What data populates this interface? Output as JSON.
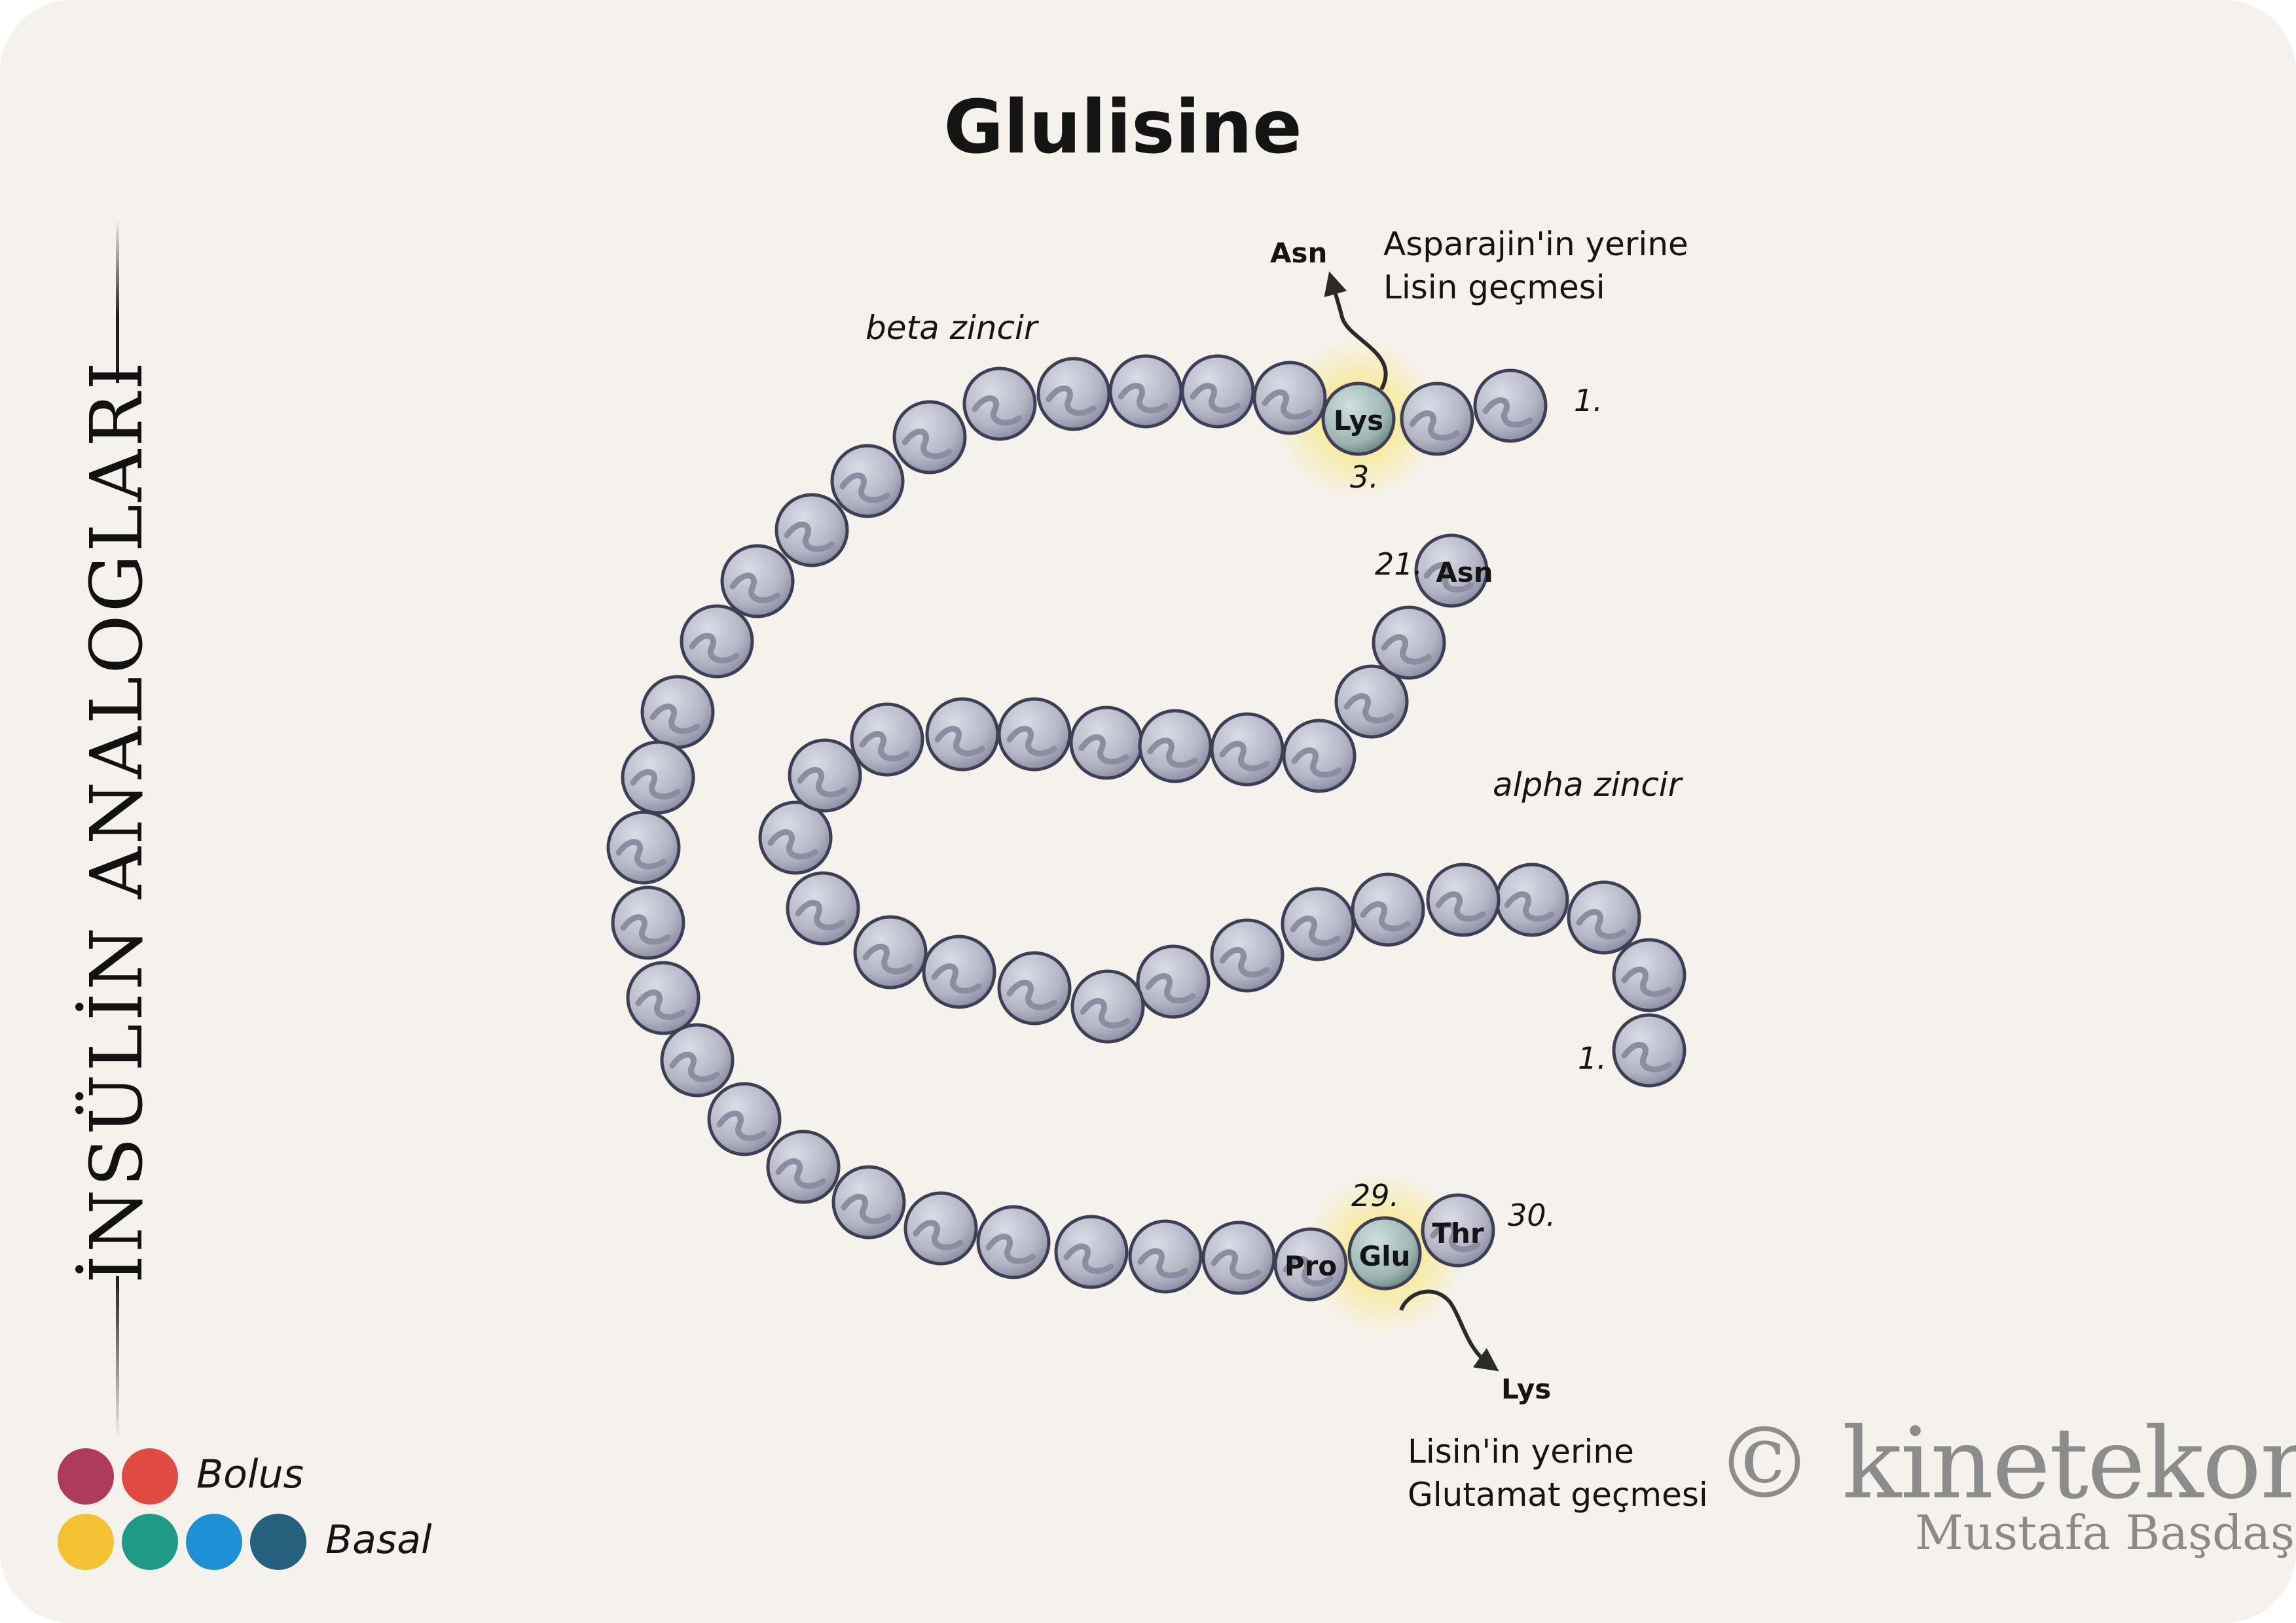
{
  "title": "Glulisine",
  "sidebar": {
    "title": "İNSÜLİN ANALOGLARI"
  },
  "chains": {
    "beta": {
      "label": "beta zincir",
      "start_number": "1.",
      "end_number": "30."
    },
    "alpha": {
      "label": "alpha zincir",
      "start_number": "1.",
      "end_number": "21.",
      "end_residue": "Asn"
    }
  },
  "mutations": [
    {
      "position": "3.",
      "residue": "Lys",
      "original": "Asn",
      "note_line1": "Asparajin'in yerine",
      "note_line2": "Lisin geçmesi"
    },
    {
      "position": "29.",
      "residue": "Glu",
      "original": "Lys",
      "note_line1": "Lisin'in yerine",
      "note_line2": "Glutamat geçmesi"
    }
  ],
  "beta_residues": {
    "pro": "Pro",
    "thr": "Thr"
  },
  "legend": {
    "bolus_label": "Bolus",
    "basal_label": "Basal",
    "bolus_colors": [
      "#b03a5e",
      "#e04a43"
    ],
    "basal_colors": [
      "#f2c232",
      "#1f9a86",
      "#1f8fd6",
      "#25607e"
    ]
  },
  "branding": {
    "watermark": "© kinetekor.",
    "author": "Mustafa Başdaş"
  },
  "colors": {
    "bead": "#aeaebe",
    "bead_stroke": "#3e3e55",
    "highlight": "#9fb4b1",
    "glow": "#f7e15a"
  }
}
